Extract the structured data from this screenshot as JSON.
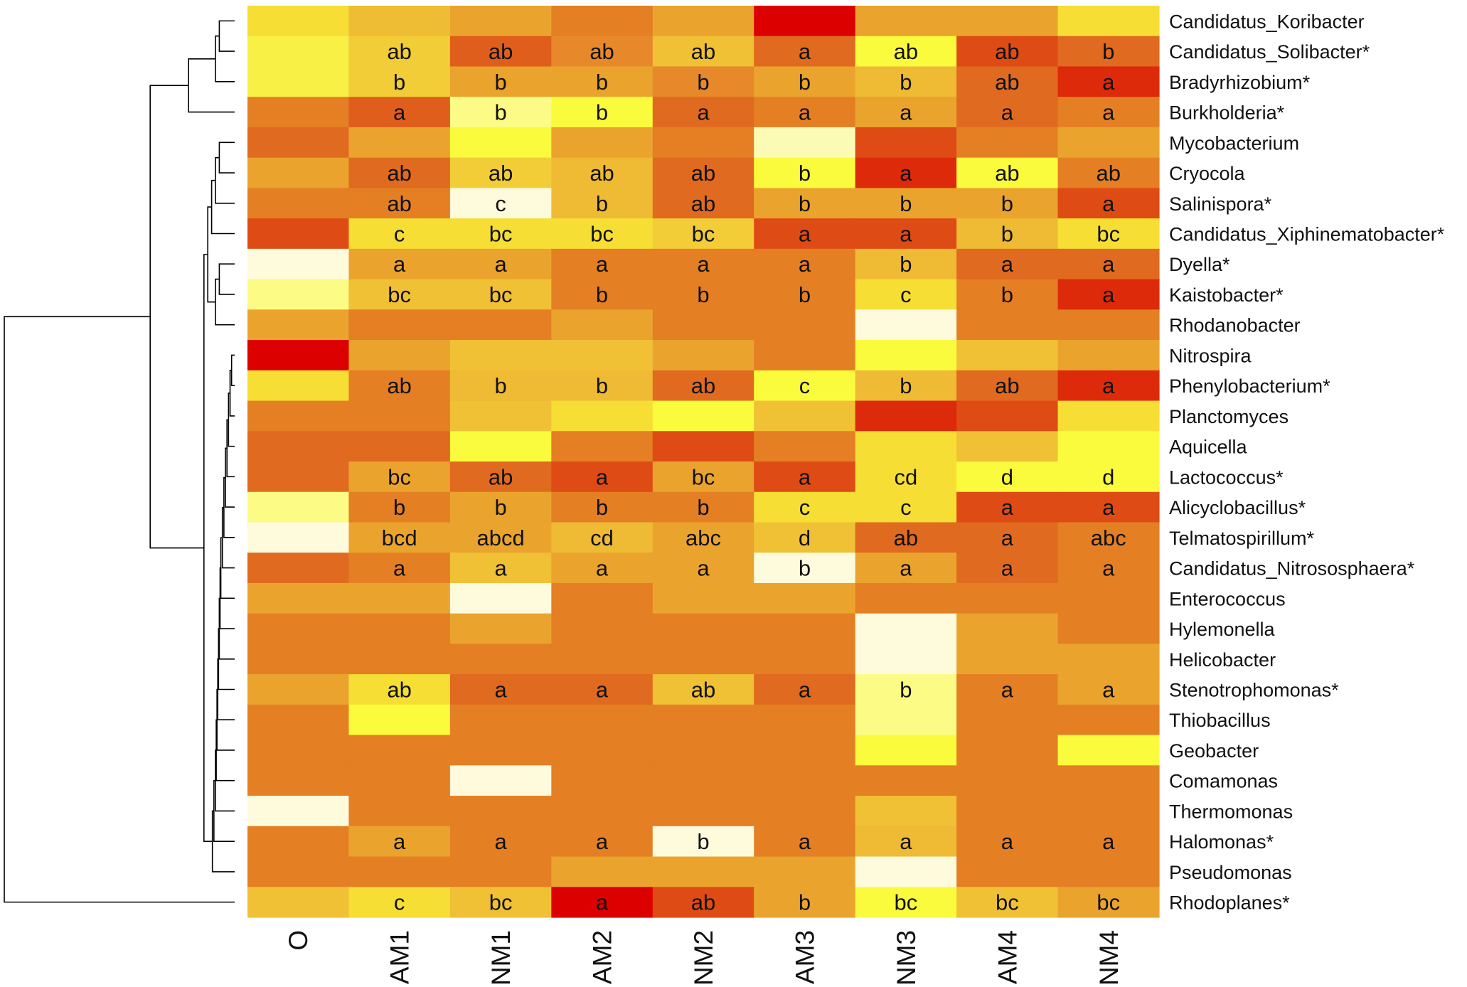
{
  "chart_data": {
    "type": "heatmap",
    "title": "",
    "xlabel": "",
    "ylabel": "",
    "columns": [
      "O",
      "AM1",
      "NM1",
      "AM2",
      "NM2",
      "AM3",
      "NM3",
      "AM4",
      "NM4"
    ],
    "rows": [
      "Candidatus_Koribacter",
      "Candidatus_Solibacter*",
      "Bradyrhizobium*",
      "Burkholderia*",
      "Mycobacterium",
      "Cryocola",
      "Salinispora*",
      "Candidatus_Xiphinematobacter*",
      "Dyella*",
      "Kaistobacter*",
      "Rhodanobacter",
      "Nitrospira",
      "Phenylobacterium*",
      "Planctomyces",
      "Aquicella",
      "Lactococcus*",
      "Alicyclobacillus*",
      "Telmatospirillum*",
      "Candidatus_Nitrososphaera*",
      "Enterococcus",
      "Hylemonella",
      "Helicobacter",
      "Stenotrophomonas*",
      "Thiobacillus",
      "Geobacter",
      "Comamonas",
      "Thermomonas",
      "Halomonas*",
      "Pseudomonas",
      "Rhodoplanes*"
    ],
    "colors": [
      [
        "#f6de35",
        "#eebd33",
        "#eaa42d",
        "#e47f24",
        "#eaa42d",
        "#dd0000",
        "#eaa42d",
        "#eaa42d",
        "#f6de35"
      ],
      [
        "#f8f044",
        "#f2cd38",
        "#e05e1c",
        "#e7892a",
        "#f0c035",
        "#e06a1f",
        "#fbfb3d",
        "#df4b14",
        "#e06a1f"
      ],
      [
        "#f8f044",
        "#f2cd38",
        "#eaa42d",
        "#eaa42d",
        "#e7892a",
        "#eaa42d",
        "#efba34",
        "#e06a1f",
        "#dc2a0a"
      ],
      [
        "#e47f24",
        "#e05e1c",
        "#fbfb85",
        "#fbfb3d",
        "#e06a1f",
        "#e47f24",
        "#eaa42d",
        "#e06a1f",
        "#e47f24"
      ],
      [
        "#e06a1f",
        "#eaa42d",
        "#fbfb3d",
        "#eaa42d",
        "#e47f24",
        "#fcfbb6",
        "#df4b14",
        "#e47f24",
        "#eaa42d"
      ],
      [
        "#eaa42d",
        "#e06a1f",
        "#f2cd38",
        "#efba34",
        "#e06a1f",
        "#fbfb3d",
        "#dc2a0a",
        "#fbfb3d",
        "#e47f24"
      ],
      [
        "#e47f24",
        "#e47f24",
        "#fefbdc",
        "#efba34",
        "#e06a1f",
        "#eaa42d",
        "#eaa42d",
        "#eaa42d",
        "#df4b14"
      ],
      [
        "#df4b14",
        "#f6de35",
        "#f6de35",
        "#f6de35",
        "#f2cd38",
        "#df4b14",
        "#df4b14",
        "#efba34",
        "#f6de35"
      ],
      [
        "#fefbdc",
        "#eaa42d",
        "#eaa42d",
        "#e47f24",
        "#e47f24",
        "#e47f24",
        "#efba34",
        "#e06a1f",
        "#e06a1f"
      ],
      [
        "#fbfb85",
        "#f0c035",
        "#f0c035",
        "#e47f24",
        "#e47f24",
        "#e47f24",
        "#f6de35",
        "#e47f24",
        "#dc2a0a"
      ],
      [
        "#eaa42d",
        "#e47f24",
        "#e47f24",
        "#eaa42d",
        "#e47f24",
        "#e47f24",
        "#fefbdc",
        "#e47f24",
        "#e47f24"
      ],
      [
        "#dd0000",
        "#eaa42d",
        "#f0c035",
        "#f0c035",
        "#eaa42d",
        "#e47f24",
        "#fbfb3d",
        "#f0c035",
        "#eaa42d"
      ],
      [
        "#f6de35",
        "#e47f24",
        "#efba34",
        "#efba34",
        "#e06a1f",
        "#fbfb3d",
        "#efba34",
        "#e06a1f",
        "#dc2a0a"
      ],
      [
        "#e47f24",
        "#e47f24",
        "#f0c035",
        "#f6de35",
        "#fbfb3d",
        "#f0c035",
        "#dc2a0a",
        "#df4b14",
        "#f6de35"
      ],
      [
        "#e06a1f",
        "#e06a1f",
        "#fbfb3d",
        "#e47f24",
        "#df4b14",
        "#e47f24",
        "#f6de35",
        "#f0c035",
        "#fbfb3d"
      ],
      [
        "#e06a1f",
        "#eaa42d",
        "#e06a1f",
        "#df4b14",
        "#eaa42d",
        "#df4b14",
        "#f6de35",
        "#fbfb3d",
        "#fbfb3d"
      ],
      [
        "#fbfb85",
        "#e47f24",
        "#eaa42d",
        "#e47f24",
        "#e47f24",
        "#f6de35",
        "#f6de35",
        "#df4b14",
        "#df4b14"
      ],
      [
        "#fefbdc",
        "#eaa42d",
        "#eaa42d",
        "#efba34",
        "#eaa42d",
        "#f0c035",
        "#e06a1f",
        "#e06a1f",
        "#e47f24"
      ],
      [
        "#e06a1f",
        "#e47f24",
        "#f0c035",
        "#eaa42d",
        "#eaa42d",
        "#fefbdc",
        "#eaa42d",
        "#e06a1f",
        "#e47f24"
      ],
      [
        "#eaa42d",
        "#eaa42d",
        "#fefbdc",
        "#e47f24",
        "#eaa42d",
        "#eaa42d",
        "#e47f24",
        "#e47f24",
        "#e47f24"
      ],
      [
        "#e47f24",
        "#e47f24",
        "#eaa42d",
        "#e47f24",
        "#e47f24",
        "#e47f24",
        "#fefbdc",
        "#eaa42d",
        "#e47f24"
      ],
      [
        "#e47f24",
        "#e47f24",
        "#e47f24",
        "#e47f24",
        "#e47f24",
        "#e47f24",
        "#fefbdc",
        "#eaa42d",
        "#eaa42d"
      ],
      [
        "#eaa42d",
        "#f6de35",
        "#e06a1f",
        "#e06a1f",
        "#f0c035",
        "#e06a1f",
        "#fbfb85",
        "#e47f24",
        "#eaa42d"
      ],
      [
        "#e47f24",
        "#fbfb3d",
        "#e47f24",
        "#e47f24",
        "#e47f24",
        "#e47f24",
        "#fbfb85",
        "#e47f24",
        "#e47f24"
      ],
      [
        "#e47f24",
        "#e47f24",
        "#e47f24",
        "#e47f24",
        "#e47f24",
        "#e47f24",
        "#fbfb3d",
        "#e47f24",
        "#fbfb3d"
      ],
      [
        "#e47f24",
        "#e47f24",
        "#fefbdc",
        "#e47f24",
        "#e47f24",
        "#e47f24",
        "#e47f24",
        "#e47f24",
        "#e47f24"
      ],
      [
        "#fefbdc",
        "#e47f24",
        "#e47f24",
        "#e47f24",
        "#e47f24",
        "#e47f24",
        "#f0c035",
        "#e47f24",
        "#e47f24"
      ],
      [
        "#e47f24",
        "#eaa42d",
        "#e47f24",
        "#e47f24",
        "#fefbdc",
        "#e47f24",
        "#efba34",
        "#e47f24",
        "#e47f24"
      ],
      [
        "#e47f24",
        "#e47f24",
        "#e47f24",
        "#eaa42d",
        "#eaa42d",
        "#eaa42d",
        "#fefbdc",
        "#e47f24",
        "#e47f24"
      ],
      [
        "#f0c035",
        "#f6de35",
        "#f0c035",
        "#dd0000",
        "#df4b14",
        "#eaa42d",
        "#fbfb3d",
        "#f0c035",
        "#eaa42d"
      ]
    ],
    "letters": [
      [
        "",
        "",
        "",
        "",
        "",
        "",
        "",
        "",
        ""
      ],
      [
        "",
        "ab",
        "ab",
        "ab",
        "ab",
        "a",
        "ab",
        "ab",
        "b"
      ],
      [
        "",
        "b",
        "b",
        "b",
        "b",
        "b",
        "b",
        "ab",
        "a"
      ],
      [
        "",
        "a",
        "b",
        "b",
        "a",
        "a",
        "a",
        "a",
        "a"
      ],
      [
        "",
        "",
        "",
        "",
        "",
        "",
        "",
        "",
        ""
      ],
      [
        "",
        "ab",
        "ab",
        "ab",
        "ab",
        "b",
        "a",
        "ab",
        "ab"
      ],
      [
        "",
        "ab",
        "c",
        "b",
        "ab",
        "b",
        "b",
        "b",
        "a"
      ],
      [
        "",
        "c",
        "bc",
        "bc",
        "bc",
        "a",
        "a",
        "b",
        "bc"
      ],
      [
        "",
        "a",
        "a",
        "a",
        "a",
        "a",
        "b",
        "a",
        "a"
      ],
      [
        "",
        "bc",
        "bc",
        "b",
        "b",
        "b",
        "c",
        "b",
        "a"
      ],
      [
        "",
        "",
        "",
        "",
        "",
        "",
        "",
        "",
        ""
      ],
      [
        "",
        "",
        "",
        "",
        "",
        "",
        "",
        "",
        ""
      ],
      [
        "",
        "ab",
        "b",
        "b",
        "ab",
        "c",
        "b",
        "ab",
        "a"
      ],
      [
        "",
        "",
        "",
        "",
        "",
        "",
        "",
        "",
        ""
      ],
      [
        "",
        "",
        "",
        "",
        "",
        "",
        "",
        "",
        ""
      ],
      [
        "",
        "bc",
        "ab",
        "a",
        "bc",
        "a",
        "cd",
        "d",
        "d"
      ],
      [
        "",
        "b",
        "b",
        "b",
        "b",
        "c",
        "c",
        "a",
        "a"
      ],
      [
        "",
        "bcd",
        "abcd",
        "cd",
        "abc",
        "d",
        "ab",
        "a",
        "abc"
      ],
      [
        "",
        "a",
        "a",
        "a",
        "a",
        "b",
        "a",
        "a",
        "a"
      ],
      [
        "",
        "",
        "",
        "",
        "",
        "",
        "",
        "",
        ""
      ],
      [
        "",
        "",
        "",
        "",
        "",
        "",
        "",
        "",
        ""
      ],
      [
        "",
        "",
        "",
        "",
        "",
        "",
        "",
        "",
        ""
      ],
      [
        "",
        "ab",
        "a",
        "a",
        "ab",
        "a",
        "b",
        "a",
        "a"
      ],
      [
        "",
        "",
        "",
        "",
        "",
        "",
        "",
        "",
        ""
      ],
      [
        "",
        "",
        "",
        "",
        "",
        "",
        "",
        "",
        ""
      ],
      [
        "",
        "",
        "",
        "",
        "",
        "",
        "",
        "",
        ""
      ],
      [
        "",
        "",
        "",
        "",
        "",
        "",
        "",
        "",
        ""
      ],
      [
        "",
        "a",
        "a",
        "a",
        "b",
        "a",
        "a",
        "a",
        "a"
      ],
      [
        "",
        "",
        "",
        "",
        "",
        "",
        "",
        "",
        ""
      ],
      [
        "",
        "c",
        "bc",
        "a",
        "ab",
        "b",
        "bc",
        "bc",
        "bc"
      ]
    ],
    "dendrogram": [
      [
        0,
        1,
        0.02
      ],
      [
        30,
        2,
        0.025
      ],
      [
        31,
        3,
        0.06
      ],
      [
        4,
        5,
        0.02
      ],
      [
        33,
        6,
        0.025
      ],
      [
        34,
        7,
        0.03
      ],
      [
        8,
        9,
        0.02
      ],
      [
        36,
        10,
        0.025
      ],
      [
        35,
        37,
        0.035
      ],
      [
        11,
        12,
        0.004
      ],
      [
        39,
        13,
        0.006
      ],
      [
        40,
        14,
        0.008
      ],
      [
        41,
        15,
        0.01
      ],
      [
        42,
        16,
        0.012
      ],
      [
        43,
        17,
        0.014
      ],
      [
        44,
        18,
        0.016
      ],
      [
        45,
        19,
        0.018
      ],
      [
        46,
        20,
        0.019
      ],
      [
        47,
        21,
        0.02
      ],
      [
        48,
        22,
        0.021
      ],
      [
        49,
        23,
        0.022
      ],
      [
        50,
        24,
        0.023
      ],
      [
        51,
        25,
        0.024
      ],
      [
        52,
        26,
        0.025
      ],
      [
        53,
        27,
        0.027
      ],
      [
        54,
        28,
        0.029
      ],
      [
        38,
        55,
        0.04
      ],
      [
        32,
        56,
        0.11
      ],
      [
        57,
        29,
        0.3
      ]
    ]
  }
}
